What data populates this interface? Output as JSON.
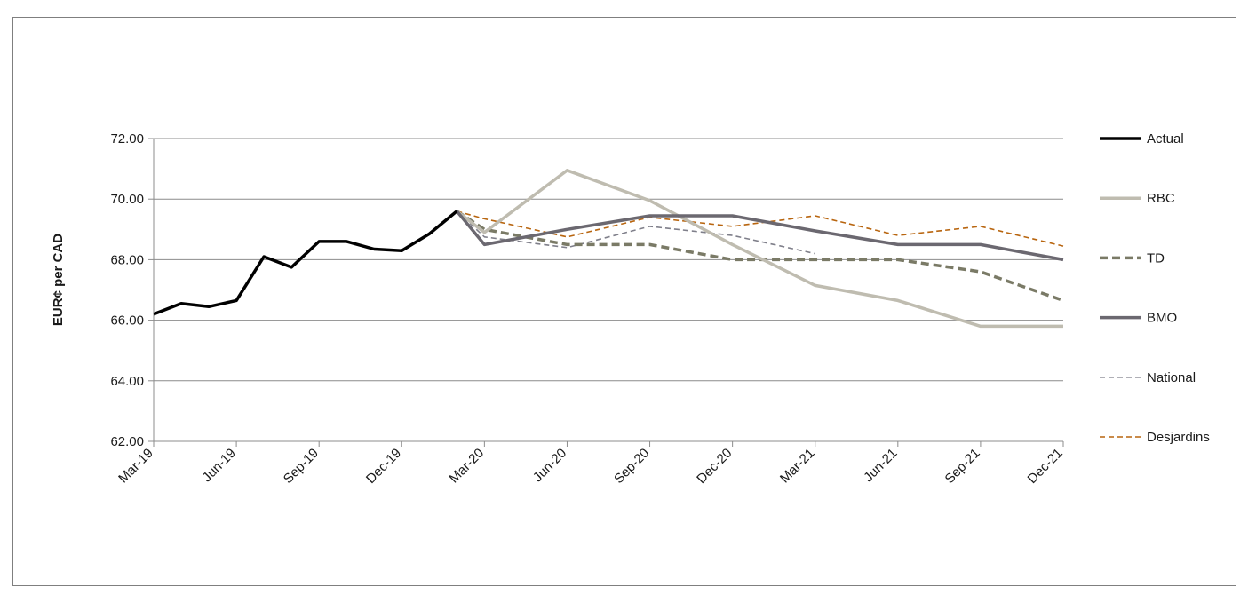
{
  "chart_data": {
    "type": "line",
    "title": "",
    "xlabel": "",
    "ylabel": "EUR¢ per CAD",
    "ylim": [
      62,
      72
    ],
    "yticks": [
      "62.00",
      "64.00",
      "66.00",
      "68.00",
      "70.00",
      "72.00"
    ],
    "xticks": [
      "Mar-19",
      "Jun-19",
      "Sep-19",
      "Dec-19",
      "Mar-20",
      "Jun-20",
      "Sep-20",
      "Dec-20",
      "Mar-21",
      "Jun-21",
      "Sep-21",
      "Dec-21"
    ],
    "grid": "horizontal",
    "legend_position": "right",
    "series": [
      {
        "name": "Actual",
        "color": "#000000",
        "style": "solid-thick",
        "points": [
          [
            "Mar-19",
            66.2
          ],
          [
            "Apr-19",
            66.55
          ],
          [
            "May-19",
            66.45
          ],
          [
            "Jun-19",
            66.65
          ],
          [
            "Jul-19",
            68.1
          ],
          [
            "Aug-19",
            67.75
          ],
          [
            "Sep-19",
            68.6
          ],
          [
            "Oct-19",
            68.6
          ],
          [
            "Nov-19",
            68.35
          ],
          [
            "Dec-19",
            68.3
          ],
          [
            "Jan-20",
            68.85
          ],
          [
            "Feb-20",
            69.6
          ]
        ]
      },
      {
        "name": "RBC",
        "color": "#bfbcb0",
        "style": "solid-thick",
        "points": [
          [
            "Feb-20",
            69.6
          ],
          [
            "Mar-20",
            68.9
          ],
          [
            "Jun-20",
            70.95
          ],
          [
            "Sep-20",
            69.95
          ],
          [
            "Dec-20",
            68.5
          ],
          [
            "Mar-21",
            67.15
          ],
          [
            "Jun-21",
            66.65
          ],
          [
            "Sep-21",
            65.8
          ],
          [
            "Dec-21",
            65.8
          ]
        ]
      },
      {
        "name": "TD",
        "color": "#7a7a66",
        "style": "dashed-thick",
        "points": [
          [
            "Feb-20",
            69.6
          ],
          [
            "Mar-20",
            69.0
          ],
          [
            "Jun-20",
            68.5
          ],
          [
            "Sep-20",
            68.5
          ],
          [
            "Dec-20",
            68.0
          ],
          [
            "Mar-21",
            68.0
          ],
          [
            "Jun-21",
            68.0
          ],
          [
            "Sep-21",
            67.6
          ],
          [
            "Dec-21",
            66.65
          ]
        ]
      },
      {
        "name": "BMO",
        "color": "#6b6870",
        "style": "solid-thick",
        "points": [
          [
            "Feb-20",
            69.6
          ],
          [
            "Mar-20",
            68.5
          ],
          [
            "Jun-20",
            69.0
          ],
          [
            "Sep-20",
            69.45
          ],
          [
            "Dec-20",
            69.45
          ],
          [
            "Mar-21",
            68.95
          ],
          [
            "Jun-21",
            68.5
          ],
          [
            "Sep-21",
            68.5
          ],
          [
            "Dec-21",
            68.0
          ]
        ]
      },
      {
        "name": "National",
        "color": "#7f7f8a",
        "style": "dashed-thin",
        "points": [
          [
            "Feb-20",
            69.6
          ],
          [
            "Mar-20",
            68.75
          ],
          [
            "Jun-20",
            68.4
          ],
          [
            "Sep-20",
            69.1
          ],
          [
            "Dec-20",
            68.8
          ],
          [
            "Mar-21",
            68.2
          ]
        ]
      },
      {
        "name": "Desjardins",
        "color": "#b8650f",
        "style": "dashed-thin",
        "points": [
          [
            "Feb-20",
            69.6
          ],
          [
            "Mar-20",
            69.35
          ],
          [
            "Jun-20",
            68.75
          ],
          [
            "Sep-20",
            69.4
          ],
          [
            "Dec-20",
            69.1
          ],
          [
            "Mar-21",
            69.45
          ],
          [
            "Jun-21",
            68.8
          ],
          [
            "Sep-21",
            69.1
          ],
          [
            "Dec-21",
            68.45
          ]
        ]
      }
    ]
  }
}
